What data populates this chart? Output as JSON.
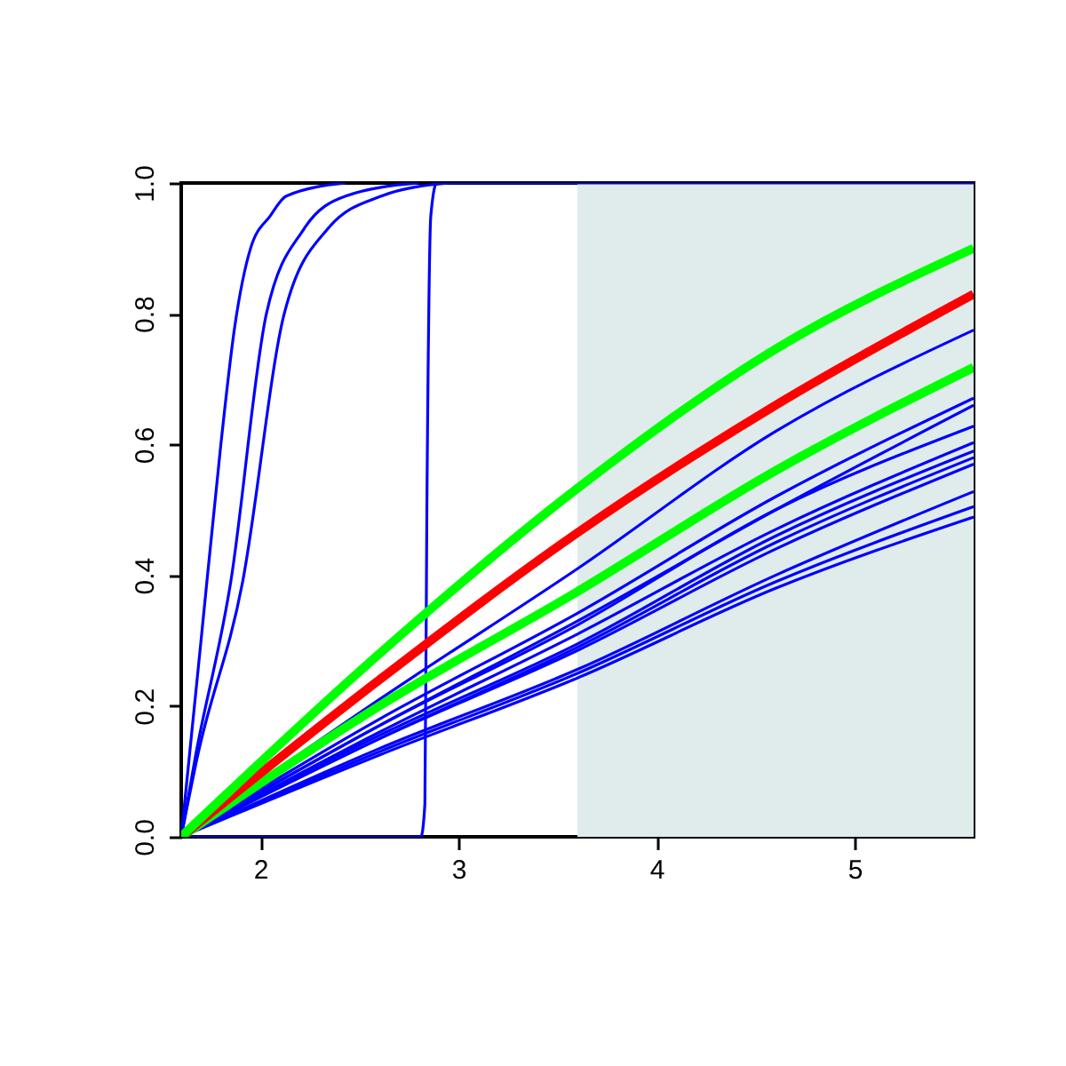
{
  "chart_data": {
    "type": "line",
    "x": [
      1.6,
      2.6,
      3.6,
      4.6,
      5.6
    ],
    "xlim": [
      1.6,
      5.6
    ],
    "ylim": [
      0,
      1
    ],
    "xticks": [
      2,
      3,
      4,
      5
    ],
    "yticks": [
      {
        "value": 0,
        "label": "0.0"
      },
      {
        "value": 0.2,
        "label": "0.2"
      },
      {
        "value": 0.4,
        "label": "0.4"
      },
      {
        "value": 0.6,
        "label": "0.6"
      },
      {
        "value": 0.8,
        "label": "0.8"
      },
      {
        "value": 1,
        "label": "1.0"
      }
    ],
    "grid": false,
    "legend": false,
    "bands": [
      {
        "axis": "x",
        "from": 3.6,
        "to": 5.6,
        "color": "#e0ecec"
      }
    ],
    "series": [
      {
        "color": "#0000ff",
        "x": [
          1.6,
          1.7,
          1.8,
          1.87,
          1.95,
          2.05,
          2.13,
          2.43
        ],
        "values": [
          0,
          0.3,
          0.6,
          0.78,
          0.9,
          0.95,
          0.98,
          1
        ]
      },
      {
        "color": "#0000ff",
        "x": [
          1.6,
          1.67,
          1.85,
          2.03,
          2.22,
          2.43,
          2.8
        ],
        "values": [
          0,
          0.12,
          0.39,
          0.8,
          0.93,
          0.98,
          1
        ]
      },
      {
        "color": "#0000ff",
        "x": [
          1.6,
          1.68,
          1.91,
          2.12,
          2.34,
          2.61,
          2.95
        ],
        "values": [
          0,
          0.12,
          0.39,
          0.8,
          0.93,
          0.98,
          1
        ]
      },
      {
        "color": "#0000ff",
        "x": [
          1.6,
          2.81,
          2.83,
          2.84,
          2.86,
          2.89,
          5.6
        ],
        "values": [
          0,
          0,
          0.05,
          0.5,
          0.95,
          1,
          1
        ]
      },
      {
        "color": "#0000ff",
        "values": [
          0,
          0.21,
          0.41,
          0.62,
          0.775
        ]
      },
      {
        "color": "#0000ff",
        "values": [
          0,
          0.18,
          0.342,
          0.52,
          0.671
        ]
      },
      {
        "color": "#0000ff",
        "values": [
          0,
          0.17,
          0.33,
          0.5,
          0.66
        ]
      },
      {
        "color": "#0000ff",
        "values": [
          0,
          0.17,
          0.324,
          0.5,
          0.628
        ]
      },
      {
        "color": "#0000ff",
        "values": [
          0,
          0.16,
          0.31,
          0.47,
          0.603
        ]
      },
      {
        "color": "#0000ff",
        "values": [
          0,
          0.155,
          0.295,
          0.46,
          0.59
        ]
      },
      {
        "color": "#0000ff",
        "values": [
          0,
          0.15,
          0.29,
          0.45,
          0.58
        ]
      },
      {
        "color": "#0000ff",
        "values": [
          0,
          0.15,
          0.285,
          0.44,
          0.57
        ]
      },
      {
        "color": "#0000ff",
        "values": [
          0,
          0.135,
          0.256,
          0.4,
          0.528
        ]
      },
      {
        "color": "#0000ff",
        "values": [
          0,
          0.13,
          0.25,
          0.39,
          0.505
        ]
      },
      {
        "color": "#0000ff",
        "values": [
          0,
          0.125,
          0.243,
          0.38,
          0.489
        ]
      },
      {
        "color": "#00ff00",
        "values": [
          0,
          0.2,
          0.375,
          0.56,
          0.718
        ]
      },
      {
        "color": "#ff0000",
        "values": [
          0,
          0.24,
          0.465,
          0.66,
          0.83
        ]
      },
      {
        "color": "#00ff00",
        "values": [
          0,
          0.28,
          0.533,
          0.746,
          0.9
        ]
      }
    ]
  }
}
